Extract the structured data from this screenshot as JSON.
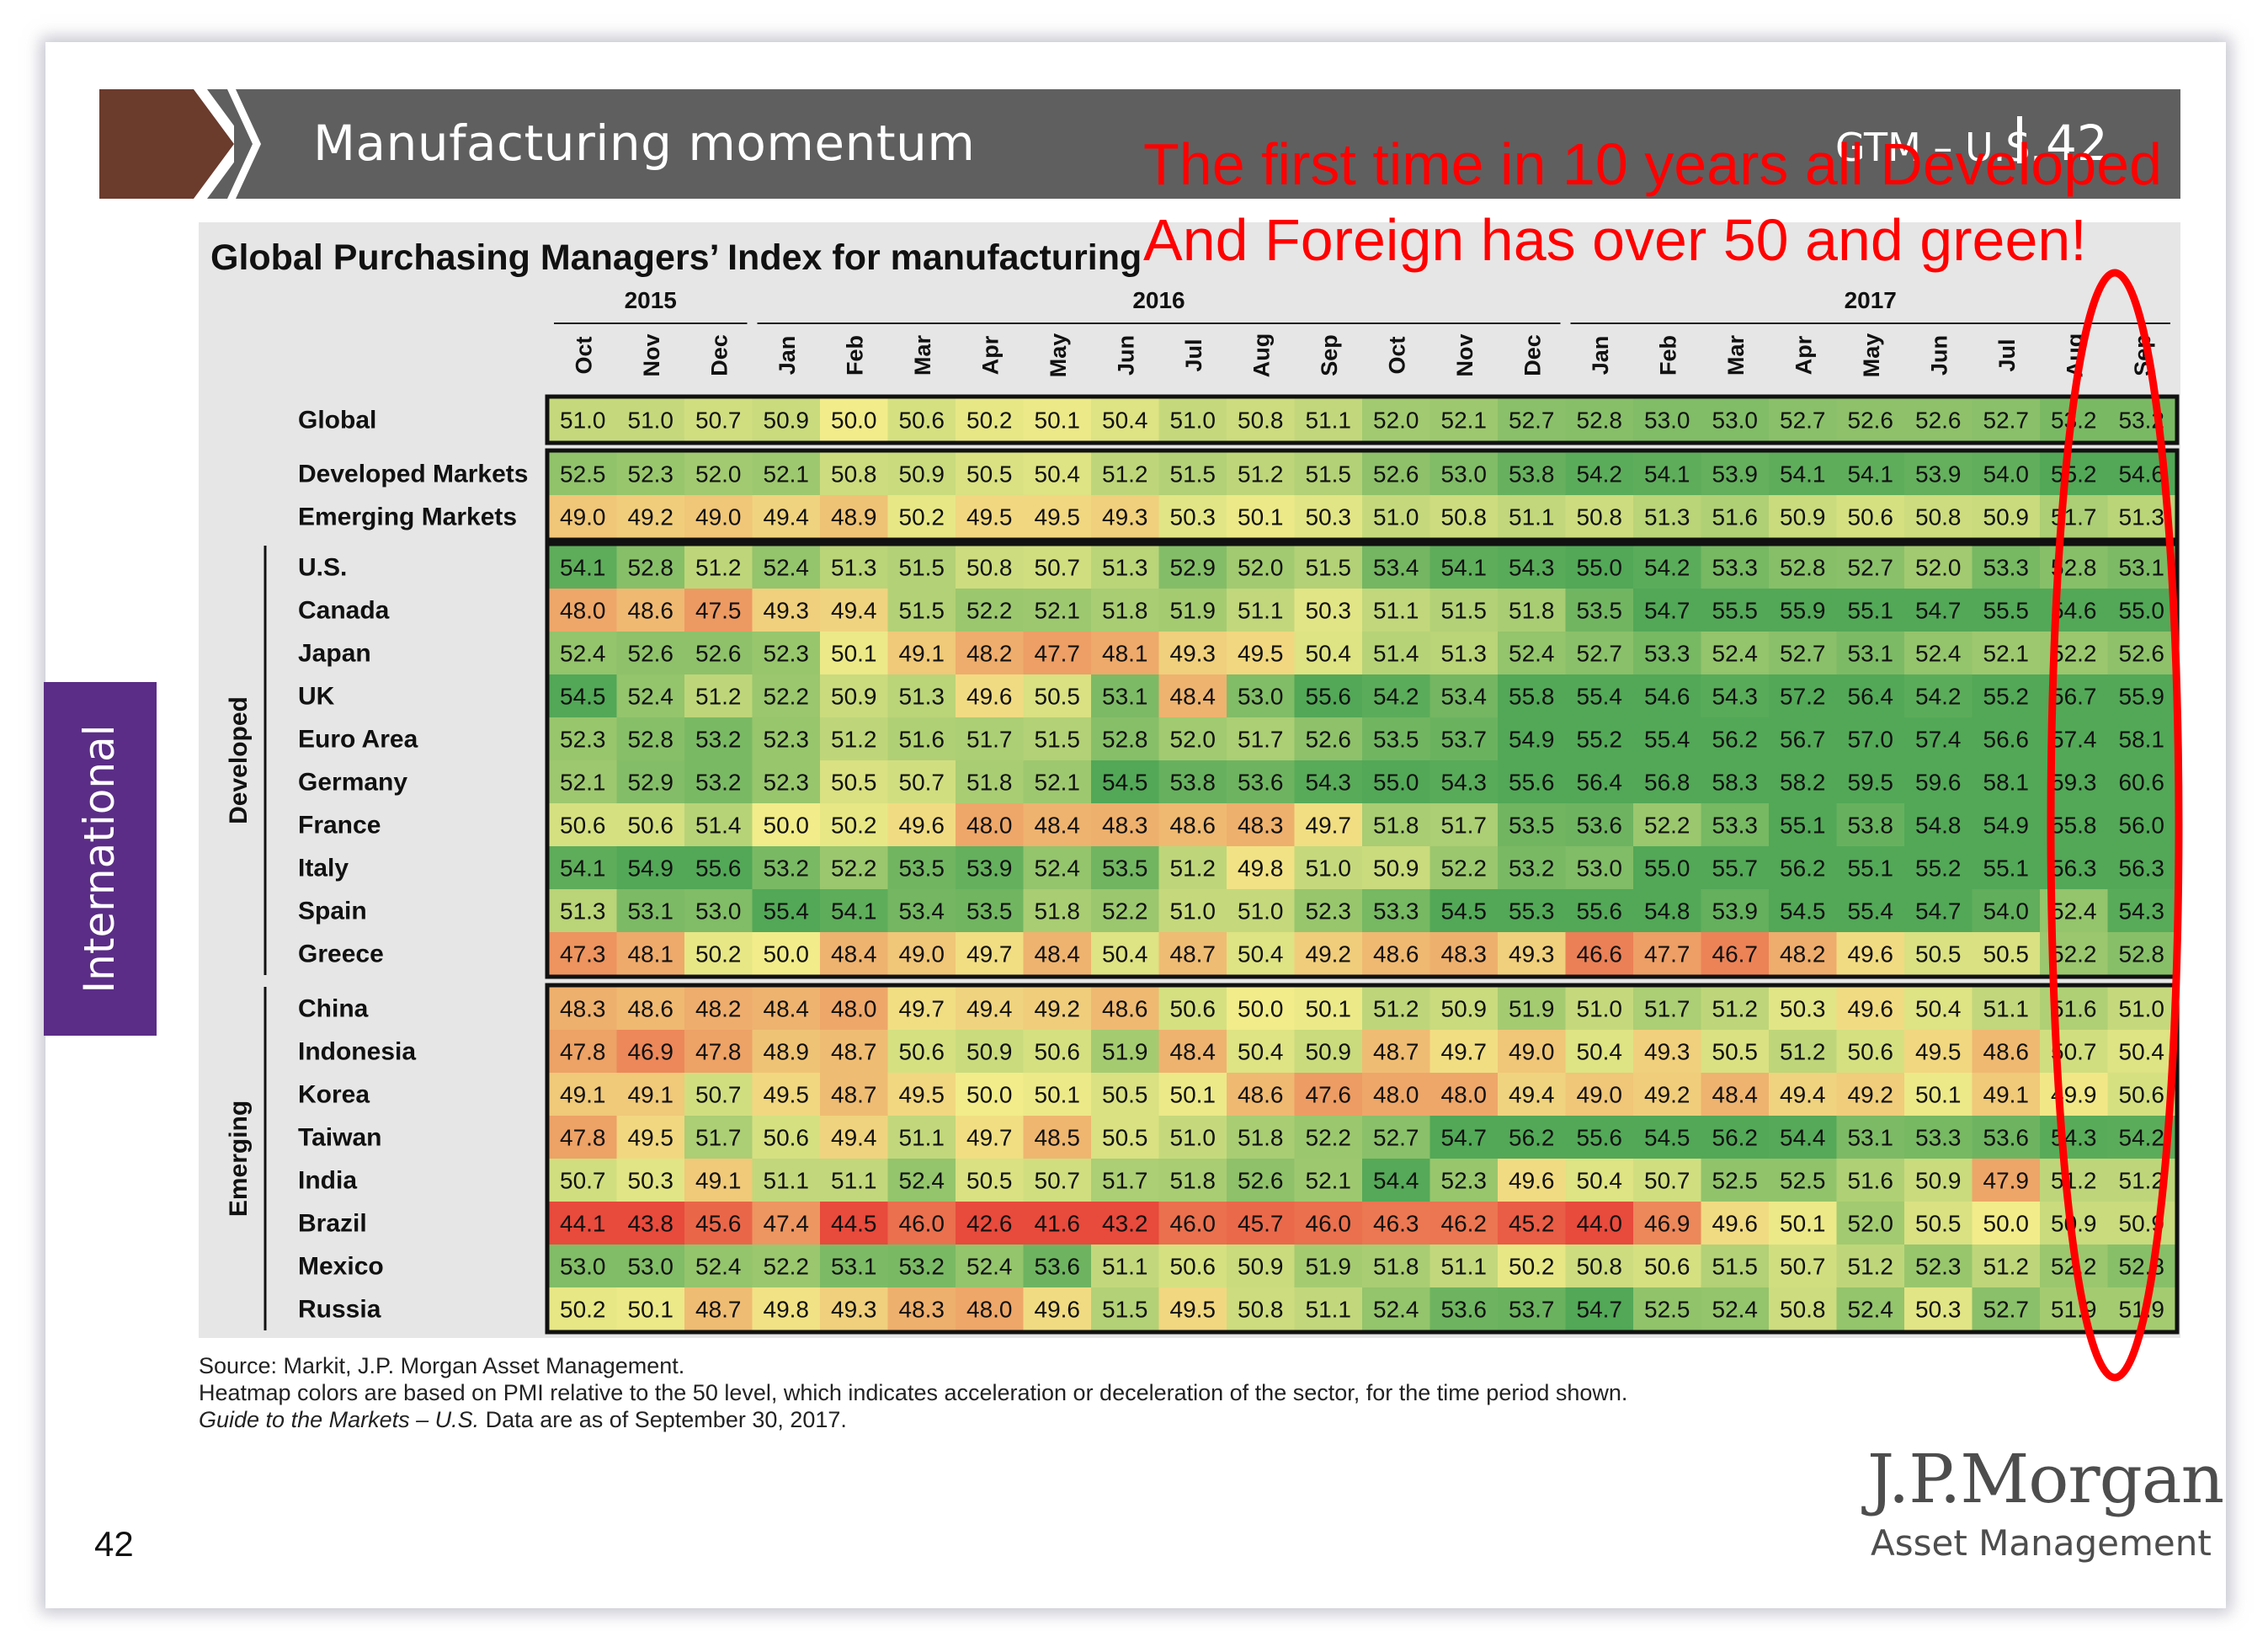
{
  "header": {
    "title": "Manufacturing momentum",
    "gtm_label": "GTM – U.S.",
    "page": "42",
    "colors": {
      "bar": "#5f5f5f",
      "chevron": "#6b3b2c"
    }
  },
  "annotation": {
    "line1": "The first time in 10 years all Developed",
    "line2": "And Foreign has over 50 and green!",
    "color": "#ff0000"
  },
  "side_tab": {
    "label": "International",
    "color": "#5b2d86"
  },
  "chart_data": {
    "type": "heatmap",
    "title": "Global Purchasing Managers’ Index for manufacturing",
    "years": [
      {
        "label": "2015",
        "span": 3
      },
      {
        "label": "2016",
        "span": 12
      },
      {
        "label": "2017",
        "span": 9
      }
    ],
    "months": [
      "Oct",
      "Nov",
      "Dec",
      "Jan",
      "Feb",
      "Mar",
      "Apr",
      "May",
      "Jun",
      "Jul",
      "Aug",
      "Sep",
      "Oct",
      "Nov",
      "Dec",
      "Jan",
      "Feb",
      "Mar",
      "Apr",
      "May",
      "Jun",
      "Jul",
      "Aug",
      "Sep"
    ],
    "color_scale": {
      "center": 50,
      "low": "#e84a3c",
      "mid": "#f2ec8a",
      "high": "#52a857"
    },
    "groups": [
      {
        "label": "",
        "rows": [
          {
            "name": "Global",
            "values": [
              51.0,
              51.0,
              50.7,
              50.9,
              50.0,
              50.6,
              50.2,
              50.1,
              50.4,
              51.0,
              50.8,
              51.1,
              52.0,
              52.1,
              52.7,
              52.8,
              53.0,
              53.0,
              52.7,
              52.6,
              52.6,
              52.7,
              53.2,
              53.2
            ]
          }
        ]
      },
      {
        "label": "",
        "rows": [
          {
            "name": "Developed Markets",
            "values": [
              52.5,
              52.3,
              52.0,
              52.1,
              50.8,
              50.9,
              50.5,
              50.4,
              51.2,
              51.5,
              51.2,
              51.5,
              52.6,
              53.0,
              53.8,
              54.2,
              54.1,
              53.9,
              54.1,
              54.1,
              53.9,
              54.0,
              55.2,
              54.6
            ]
          },
          {
            "name": "Emerging Markets",
            "values": [
              49.0,
              49.2,
              49.0,
              49.4,
              48.9,
              50.2,
              49.5,
              49.5,
              49.3,
              50.3,
              50.1,
              50.3,
              51.0,
              50.8,
              51.1,
              50.8,
              51.3,
              51.6,
              50.9,
              50.6,
              50.8,
              50.9,
              51.7,
              51.3
            ]
          }
        ]
      },
      {
        "label": "Developed",
        "rows": [
          {
            "name": "U.S.",
            "values": [
              54.1,
              52.8,
              51.2,
              52.4,
              51.3,
              51.5,
              50.8,
              50.7,
              51.3,
              52.9,
              52.0,
              51.5,
              53.4,
              54.1,
              54.3,
              55.0,
              54.2,
              53.3,
              52.8,
              52.7,
              52.0,
              53.3,
              52.8,
              53.1
            ]
          },
          {
            "name": "Canada",
            "values": [
              48.0,
              48.6,
              47.5,
              49.3,
              49.4,
              51.5,
              52.2,
              52.1,
              51.8,
              51.9,
              51.1,
              50.3,
              51.1,
              51.5,
              51.8,
              53.5,
              54.7,
              55.5,
              55.9,
              55.1,
              54.7,
              55.5,
              54.6,
              55.0
            ]
          },
          {
            "name": "Japan",
            "values": [
              52.4,
              52.6,
              52.6,
              52.3,
              50.1,
              49.1,
              48.2,
              47.7,
              48.1,
              49.3,
              49.5,
              50.4,
              51.4,
              51.3,
              52.4,
              52.7,
              53.3,
              52.4,
              52.7,
              53.1,
              52.4,
              52.1,
              52.2,
              52.6
            ]
          },
          {
            "name": "UK",
            "values": [
              54.5,
              52.4,
              51.2,
              52.2,
              50.9,
              51.3,
              49.6,
              50.5,
              53.1,
              48.4,
              53.0,
              55.6,
              54.2,
              53.4,
              55.8,
              55.4,
              54.6,
              54.3,
              57.2,
              56.4,
              54.2,
              55.2,
              56.7,
              55.9
            ]
          },
          {
            "name": "Euro Area",
            "values": [
              52.3,
              52.8,
              53.2,
              52.3,
              51.2,
              51.6,
              51.7,
              51.5,
              52.8,
              52.0,
              51.7,
              52.6,
              53.5,
              53.7,
              54.9,
              55.2,
              55.4,
              56.2,
              56.7,
              57.0,
              57.4,
              56.6,
              57.4,
              58.1
            ]
          },
          {
            "name": "Germany",
            "values": [
              52.1,
              52.9,
              53.2,
              52.3,
              50.5,
              50.7,
              51.8,
              52.1,
              54.5,
              53.8,
              53.6,
              54.3,
              55.0,
              54.3,
              55.6,
              56.4,
              56.8,
              58.3,
              58.2,
              59.5,
              59.6,
              58.1,
              59.3,
              60.6
            ]
          },
          {
            "name": "France",
            "values": [
              50.6,
              50.6,
              51.4,
              50.0,
              50.2,
              49.6,
              48.0,
              48.4,
              48.3,
              48.6,
              48.3,
              49.7,
              51.8,
              51.7,
              53.5,
              53.6,
              52.2,
              53.3,
              55.1,
              53.8,
              54.8,
              54.9,
              55.8,
              56.0
            ]
          },
          {
            "name": "Italy",
            "values": [
              54.1,
              54.9,
              55.6,
              53.2,
              52.2,
              53.5,
              53.9,
              52.4,
              53.5,
              51.2,
              49.8,
              51.0,
              50.9,
              52.2,
              53.2,
              53.0,
              55.0,
              55.7,
              56.2,
              55.1,
              55.2,
              55.1,
              56.3,
              56.3
            ]
          },
          {
            "name": "Spain",
            "values": [
              51.3,
              53.1,
              53.0,
              55.4,
              54.1,
              53.4,
              53.5,
              51.8,
              52.2,
              51.0,
              51.0,
              52.3,
              53.3,
              54.5,
              55.3,
              55.6,
              54.8,
              53.9,
              54.5,
              55.4,
              54.7,
              54.0,
              52.4,
              54.3
            ]
          },
          {
            "name": "Greece",
            "values": [
              47.3,
              48.1,
              50.2,
              50.0,
              48.4,
              49.0,
              49.7,
              48.4,
              50.4,
              48.7,
              50.4,
              49.2,
              48.6,
              48.3,
              49.3,
              46.6,
              47.7,
              46.7,
              48.2,
              49.6,
              50.5,
              50.5,
              52.2,
              52.8
            ]
          }
        ]
      },
      {
        "label": "Emerging",
        "rows": [
          {
            "name": "China",
            "values": [
              48.3,
              48.6,
              48.2,
              48.4,
              48.0,
              49.7,
              49.4,
              49.2,
              48.6,
              50.6,
              50.0,
              50.1,
              51.2,
              50.9,
              51.9,
              51.0,
              51.7,
              51.2,
              50.3,
              49.6,
              50.4,
              51.1,
              51.6,
              51.0
            ]
          },
          {
            "name": "Indonesia",
            "values": [
              47.8,
              46.9,
              47.8,
              48.9,
              48.7,
              50.6,
              50.9,
              50.6,
              51.9,
              48.4,
              50.4,
              50.9,
              48.7,
              49.7,
              49.0,
              50.4,
              49.3,
              50.5,
              51.2,
              50.6,
              49.5,
              48.6,
              50.7,
              50.4
            ]
          },
          {
            "name": "Korea",
            "values": [
              49.1,
              49.1,
              50.7,
              49.5,
              48.7,
              49.5,
              50.0,
              50.1,
              50.5,
              50.1,
              48.6,
              47.6,
              48.0,
              48.0,
              49.4,
              49.0,
              49.2,
              48.4,
              49.4,
              49.2,
              50.1,
              49.1,
              49.9,
              50.6
            ]
          },
          {
            "name": "Taiwan",
            "values": [
              47.8,
              49.5,
              51.7,
              50.6,
              49.4,
              51.1,
              49.7,
              48.5,
              50.5,
              51.0,
              51.8,
              52.2,
              52.7,
              54.7,
              56.2,
              55.6,
              54.5,
              56.2,
              54.4,
              53.1,
              53.3,
              53.6,
              54.3,
              54.2
            ]
          },
          {
            "name": "India",
            "values": [
              50.7,
              50.3,
              49.1,
              51.1,
              51.1,
              52.4,
              50.5,
              50.7,
              51.7,
              51.8,
              52.6,
              52.1,
              54.4,
              52.3,
              49.6,
              50.4,
              50.7,
              52.5,
              52.5,
              51.6,
              50.9,
              47.9,
              51.2,
              51.2
            ]
          },
          {
            "name": "Brazil",
            "values": [
              44.1,
              43.8,
              45.6,
              47.4,
              44.5,
              46.0,
              42.6,
              41.6,
              43.2,
              46.0,
              45.7,
              46.0,
              46.3,
              46.2,
              45.2,
              44.0,
              46.9,
              49.6,
              50.1,
              52.0,
              50.5,
              50.0,
              50.9,
              50.9
            ]
          },
          {
            "name": "Mexico",
            "values": [
              53.0,
              53.0,
              52.4,
              52.2,
              53.1,
              53.2,
              52.4,
              53.6,
              51.1,
              50.6,
              50.9,
              51.9,
              51.8,
              51.1,
              50.2,
              50.8,
              50.6,
              51.5,
              50.7,
              51.2,
              52.3,
              51.2,
              52.2,
              52.8
            ]
          },
          {
            "name": "Russia",
            "values": [
              50.2,
              50.1,
              48.7,
              49.8,
              49.3,
              48.3,
              48.0,
              49.6,
              51.5,
              49.5,
              50.8,
              51.1,
              52.4,
              53.6,
              53.7,
              54.7,
              52.5,
              52.4,
              50.8,
              52.4,
              50.3,
              52.7,
              51.9,
              51.9
            ]
          }
        ]
      }
    ]
  },
  "source": {
    "line1": "Source: Markit, J.P. Morgan Asset Management.",
    "line2": "Heatmap colors are based on PMI relative to the 50 level, which indicates acceleration or deceleration of the sector, for the time period shown.",
    "line3_italic": "Guide to the Markets – U.S.",
    "line3_rest": " Data are as of September 30, 2017."
  },
  "logo": {
    "line1": "J.P.Morgan",
    "line2": "Asset Management"
  },
  "slide_number": "42"
}
